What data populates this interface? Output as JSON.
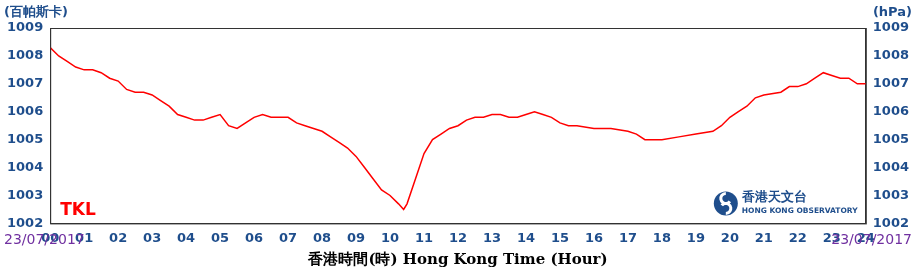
{
  "chart_data": {
    "type": "line",
    "y_label": "(百帕斯卡)",
    "y2_label": "(hPa)",
    "x_label": "香港時間(時) Hong Kong Time (Hour)",
    "x_label_left": "23/07/2017",
    "x_label_right": "23/07/2017",
    "annotations": [
      "TKL"
    ],
    "logo": [
      "香港天文台",
      "HONG KONG OBSERVATORY"
    ],
    "color": "#ff0000",
    "grid": false,
    "x": [
      0,
      0.25,
      0.5,
      0.75,
      1,
      1.25,
      1.5,
      1.75,
      2,
      2.25,
      2.5,
      2.75,
      3,
      3.25,
      3.5,
      3.75,
      4,
      4.25,
      4.5,
      4.75,
      5,
      5.25,
      5.5,
      5.75,
      6,
      6.25,
      6.5,
      6.75,
      7,
      7.25,
      7.5,
      7.75,
      8,
      8.25,
      8.5,
      8.75,
      9,
      9.25,
      9.5,
      9.75,
      10,
      10.25,
      10.4,
      10.5,
      10.75,
      11,
      11.25,
      11.5,
      11.75,
      12,
      12.25,
      12.5,
      12.75,
      13,
      13.25,
      13.5,
      13.75,
      14,
      14.25,
      14.5,
      14.75,
      15,
      15.25,
      15.5,
      16,
      16.5,
      17,
      17.25,
      17.5,
      18,
      18.5,
      19,
      19.5,
      19.75,
      20,
      20.25,
      20.5,
      20.75,
      21,
      21.5,
      21.75,
      22,
      22.25,
      22.5,
      22.75,
      23,
      23.25,
      23.5,
      23.75,
      24
    ],
    "values": [
      1008.3,
      1008.0,
      1007.8,
      1007.6,
      1007.5,
      1007.5,
      1007.4,
      1007.2,
      1007.1,
      1006.8,
      1006.7,
      1006.7,
      1006.6,
      1006.4,
      1006.2,
      1005.9,
      1005.8,
      1005.7,
      1005.7,
      1005.8,
      1005.9,
      1005.5,
      1005.4,
      1005.6,
      1005.8,
      1005.9,
      1005.8,
      1005.8,
      1005.8,
      1005.6,
      1005.5,
      1005.4,
      1005.3,
      1005.1,
      1004.9,
      1004.7,
      1004.4,
      1004.0,
      1003.6,
      1003.2,
      1003.0,
      1002.7,
      1002.5,
      1002.7,
      1003.6,
      1004.5,
      1005.0,
      1005.2,
      1005.4,
      1005.5,
      1005.7,
      1005.8,
      1005.8,
      1005.9,
      1005.9,
      1005.8,
      1005.8,
      1005.9,
      1006.0,
      1005.9,
      1005.8,
      1005.6,
      1005.5,
      1005.5,
      1005.4,
      1005.4,
      1005.3,
      1005.2,
      1005.0,
      1005.0,
      1005.1,
      1005.2,
      1005.3,
      1005.5,
      1005.8,
      1006.0,
      1006.2,
      1006.5,
      1006.6,
      1006.7,
      1006.9,
      1006.9,
      1007.0,
      1007.2,
      1007.4,
      1007.3,
      1007.2,
      1007.2,
      1007.0,
      1007.0
    ],
    "xlim": [
      0,
      24
    ],
    "xticks": [
      {
        "value": 0,
        "label": "00"
      },
      {
        "value": 1,
        "label": "01"
      },
      {
        "value": 2,
        "label": "02"
      },
      {
        "value": 3,
        "label": "03"
      },
      {
        "value": 4,
        "label": "04"
      },
      {
        "value": 5,
        "label": "05"
      },
      {
        "value": 6,
        "label": "06"
      },
      {
        "value": 7,
        "label": "07"
      },
      {
        "value": 8,
        "label": "08"
      },
      {
        "value": 9,
        "label": "09"
      },
      10,
      11,
      12,
      13,
      14,
      15,
      16,
      17,
      18,
      19,
      20,
      21,
      22,
      23,
      24
    ],
    "ylim": [
      1002,
      1009
    ],
    "yticks": [
      1002,
      1003,
      1004,
      1005,
      1006,
      1007,
      1008,
      1009
    ],
    "y2lim": [
      1002,
      1009
    ],
    "y2ticks": [
      1002,
      1003,
      1004,
      1005,
      1006,
      1007,
      1008,
      1009
    ]
  }
}
